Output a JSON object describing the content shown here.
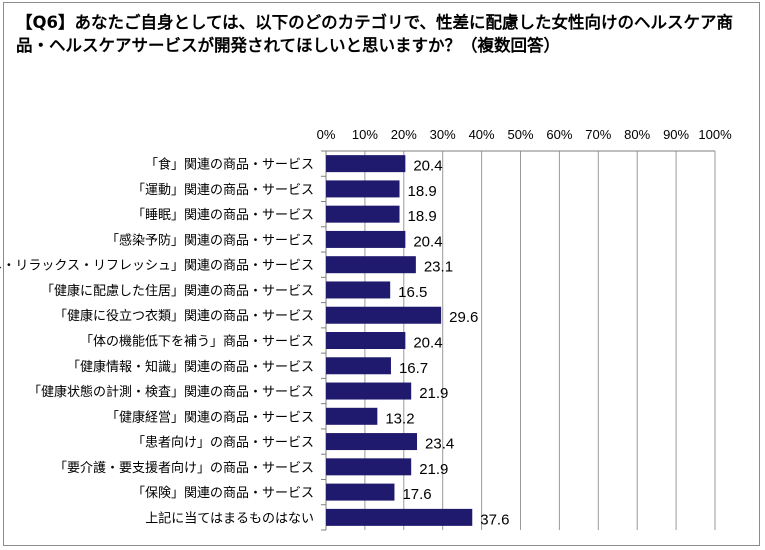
{
  "chart_data": {
    "type": "bar",
    "orientation": "horizontal",
    "title": "【Q6】あなたご自身としては、以下のどのカテゴリで、性差に配慮した女性向けのヘルスケア商品・ヘルスケアサービスが開発されてほしいと思いますか？（複数回答）",
    "categories": [
      "「食」関連の商品・サービス",
      "「運動」関連の商品・サービス",
      "「睡眠」関連の商品・サービス",
      "「感染予防」関連の商品・サービス",
      "「癒し・リラックス・リフレッシュ」関連の商品・サービス",
      "「健康に配慮した住居」関連の商品・サービス",
      "「健康に役立つ衣類」関連の商品・サービス",
      "「体の機能低下を補う」商品・サービス",
      "「健康情報・知識」関連の商品・サービス",
      "「健康状態の計測・検査」関連の商品・サービス",
      "「健康経営」関連の商品・サービス",
      "「患者向け」の商品・サービス",
      "「要介護・要支援者向け」の商品・サービス",
      "「保険」関連の商品・サービス",
      "上記に当てはまるものはない"
    ],
    "values": [
      20.4,
      18.9,
      18.9,
      20.4,
      23.1,
      16.5,
      29.6,
      20.4,
      16.7,
      21.9,
      13.2,
      23.4,
      21.9,
      17.6,
      37.6
    ],
    "value_labels": [
      "20.4",
      "18.9",
      "18.9",
      "20.4",
      "23.1",
      "16.5",
      "29.6",
      "20.4",
      "16.7",
      "21.9",
      "13.2",
      "23.4",
      "21.9",
      "17.6",
      "37.6"
    ],
    "xlim": [
      0,
      100
    ],
    "xticks": [
      "0%",
      "10%",
      "20%",
      "30%",
      "40%",
      "50%",
      "60%",
      "70%",
      "80%",
      "90%",
      "100%"
    ],
    "grid": true,
    "bar_color": "#1f1a6e",
    "grid_color": "#9a9a9a",
    "axis_position": "top"
  }
}
